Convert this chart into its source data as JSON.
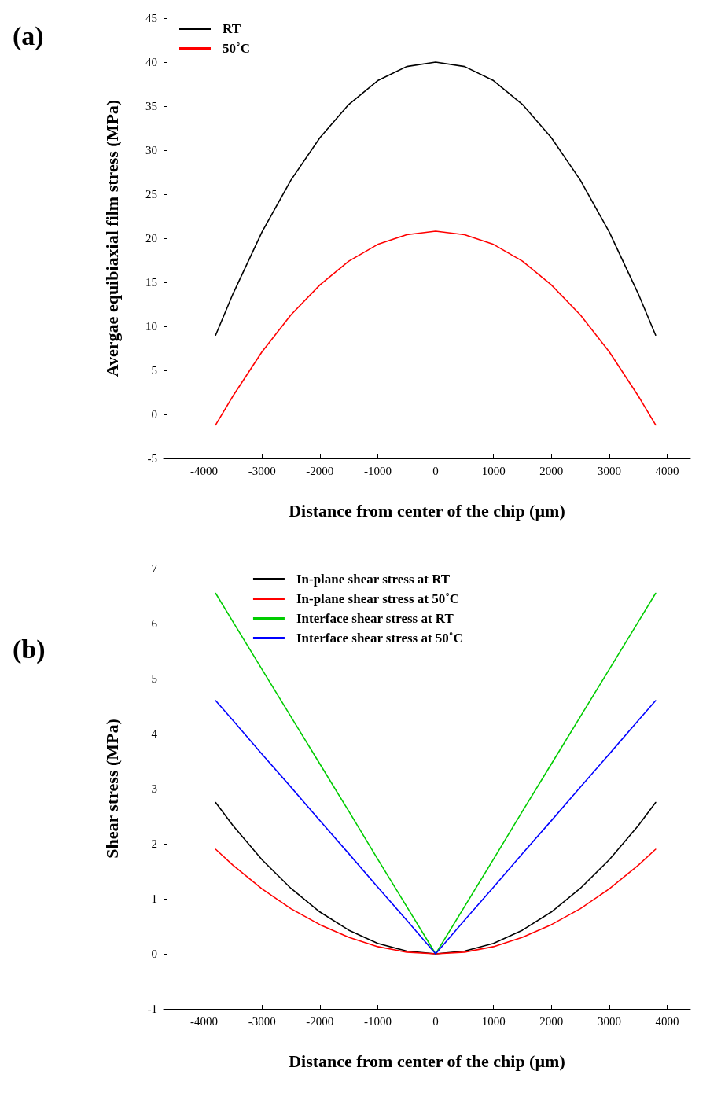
{
  "chart_data": [
    {
      "type": "line",
      "annotations": [
        "(a)"
      ],
      "xlabel": "Distance from center of the chip (µm)",
      "ylabel": "Avergae equibiaxial film stress (MPa)",
      "x": [
        -3800,
        -3500,
        -3000,
        -2500,
        -2000,
        -1500,
        -1000,
        -500,
        0,
        500,
        1000,
        1500,
        2000,
        2500,
        3000,
        3500,
        3800
      ],
      "series": [
        {
          "name": "RT",
          "color": "#000000",
          "values": [
            9,
            13.7,
            20.7,
            26.6,
            31.4,
            35.2,
            37.9,
            39.5,
            40,
            39.5,
            37.9,
            35.2,
            31.4,
            26.6,
            20.7,
            13.7,
            9
          ]
        },
        {
          "name": "50˚C",
          "color": "#ff0000",
          "values": [
            -1.2,
            2.1,
            7.1,
            11.3,
            14.7,
            17.4,
            19.3,
            20.4,
            20.8,
            20.4,
            19.3,
            17.4,
            14.7,
            11.3,
            7.1,
            2.1,
            -1.2
          ]
        }
      ],
      "xlim": [
        -4700,
        4400
      ],
      "xticks": [
        -4000,
        -3000,
        -2000,
        -1000,
        0,
        1000,
        2000,
        3000,
        4000
      ],
      "ylim": [
        -5,
        45
      ],
      "yticks": [
        -5,
        0,
        5,
        10,
        15,
        20,
        25,
        30,
        35,
        40,
        45
      ],
      "grid": false,
      "legend": "top left",
      "marker": "none",
      "line_style": "solid"
    },
    {
      "type": "line",
      "annotations": [
        "(b)"
      ],
      "xlabel": "Distance from center of the chip (µm)",
      "ylabel": "Shear stress (MPa)",
      "x": [
        -3800,
        -3500,
        -3000,
        -2500,
        -2000,
        -1500,
        -1000,
        -500,
        0,
        500,
        1000,
        1500,
        2000,
        2500,
        3000,
        3500,
        3800
      ],
      "series": [
        {
          "name": "In-plane shear stress at RT",
          "color": "#000000",
          "values": [
            2.75,
            2.33,
            1.71,
            1.19,
            0.76,
            0.43,
            0.19,
            0.05,
            0,
            0.05,
            0.19,
            0.43,
            0.76,
            1.19,
            1.71,
            2.33,
            2.75
          ]
        },
        {
          "name": "In-plane shear stress at 50˚C",
          "color": "#ff0000",
          "values": [
            1.9,
            1.61,
            1.18,
            0.82,
            0.53,
            0.3,
            0.13,
            0.03,
            0,
            0.03,
            0.13,
            0.3,
            0.53,
            0.82,
            1.18,
            1.61,
            1.9
          ]
        },
        {
          "name": "Interface shear stress at RT",
          "color": "#00cc00",
          "values": [
            6.55,
            6.03,
            5.17,
            4.31,
            3.45,
            2.59,
            1.72,
            0.86,
            0,
            0.86,
            1.72,
            2.59,
            3.45,
            4.31,
            5.17,
            6.03,
            6.55
          ]
        },
        {
          "name": "Interface shear stress at 50˚C",
          "color": "#0000ff",
          "values": [
            4.6,
            4.24,
            3.63,
            3.03,
            2.42,
            1.82,
            1.21,
            0.61,
            0,
            0.61,
            1.21,
            1.82,
            2.42,
            3.03,
            3.63,
            4.24,
            4.6
          ]
        }
      ],
      "xlim": [
        -4700,
        4400
      ],
      "xticks": [
        -4000,
        -3000,
        -2000,
        -1000,
        0,
        1000,
        2000,
        3000,
        4000
      ],
      "ylim": [
        -1,
        7
      ],
      "yticks": [
        -1,
        0,
        1,
        2,
        3,
        4,
        5,
        6,
        7
      ],
      "grid": false,
      "legend": "top",
      "marker": "none",
      "line_style": "solid"
    }
  ]
}
